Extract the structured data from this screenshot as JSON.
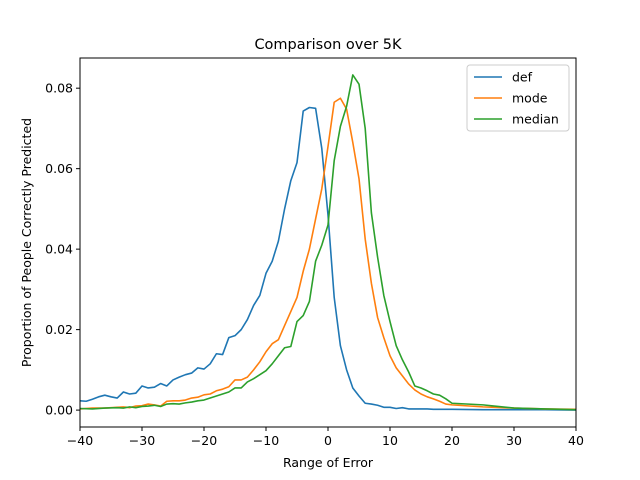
{
  "chart_data": {
    "type": "line",
    "title": "Comparison over 5K",
    "xlabel": "Range of Error",
    "ylabel": "Proportion of People Correctly Predicted",
    "xlim": [
      -40,
      40
    ],
    "ylim": [
      -0.0042,
      0.0875
    ],
    "xticks": [
      -40,
      -30,
      -20,
      -10,
      0,
      10,
      20,
      30,
      40
    ],
    "yticks": [
      0.0,
      0.02,
      0.04,
      0.06,
      0.08
    ],
    "ytick_labels": [
      "0.00",
      "0.02",
      "0.04",
      "0.06",
      "0.08"
    ],
    "grid": false,
    "legend": "upper-right",
    "series": [
      {
        "name": "def",
        "color": "#1f77b4",
        "x": [
          -40,
          -39,
          -38,
          -37,
          -36,
          -35,
          -34,
          -33,
          -32,
          -31,
          -30,
          -29,
          -28,
          -27,
          -26,
          -25,
          -24,
          -23,
          -22,
          -21,
          -20,
          -19,
          -18,
          -17,
          -16,
          -15,
          -14,
          -13,
          -12,
          -11,
          -10,
          -9,
          -8,
          -7,
          -6,
          -5,
          -4,
          -3,
          -2,
          -1,
          0,
          1,
          2,
          3,
          4,
          5,
          6,
          7,
          8,
          9,
          10,
          11,
          12,
          13,
          14,
          15,
          16,
          17,
          18,
          19,
          20,
          25,
          30,
          35,
          40
        ],
        "y": [
          0.0023,
          0.0022,
          0.0027,
          0.0033,
          0.0037,
          0.0033,
          0.003,
          0.0045,
          0.004,
          0.0042,
          0.006,
          0.0055,
          0.0057,
          0.0066,
          0.006,
          0.0075,
          0.0082,
          0.0088,
          0.0092,
          0.0105,
          0.0102,
          0.0115,
          0.014,
          0.0138,
          0.018,
          0.0185,
          0.02,
          0.0225,
          0.026,
          0.0285,
          0.034,
          0.037,
          0.042,
          0.05,
          0.057,
          0.0615,
          0.0743,
          0.0752,
          0.075,
          0.065,
          0.0485,
          0.028,
          0.016,
          0.01,
          0.0055,
          0.0035,
          0.0017,
          0.0015,
          0.0012,
          0.0007,
          0.0007,
          0.0004,
          0.0006,
          0.0003,
          0.0003,
          0.0003,
          0.0003,
          0.0002,
          0.0002,
          0.0002,
          0.0002,
          0.0001,
          0.0001,
          0.0001,
          0.0
        ]
      },
      {
        "name": "mode",
        "color": "#ff7f0e",
        "x": [
          -40,
          -38,
          -36,
          -34,
          -33,
          -32,
          -31,
          -30,
          -29,
          -28,
          -27,
          -26,
          -25,
          -24,
          -23,
          -22,
          -21,
          -20,
          -19,
          -18,
          -17,
          -16,
          -15,
          -14,
          -13,
          -12,
          -11,
          -10,
          -9,
          -8,
          -7,
          -6,
          -5,
          -4,
          -3,
          -2,
          -1,
          0,
          1,
          2,
          3,
          4,
          5,
          6,
          7,
          8,
          9,
          10,
          11,
          12,
          13,
          14,
          15,
          16,
          17,
          18,
          19,
          20,
          25,
          30,
          35,
          40
        ],
        "y": [
          0.0003,
          0.0005,
          0.0005,
          0.0007,
          0.0008,
          0.0006,
          0.001,
          0.0011,
          0.0015,
          0.0013,
          0.001,
          0.0022,
          0.0023,
          0.0023,
          0.0025,
          0.003,
          0.0032,
          0.0038,
          0.004,
          0.0048,
          0.0052,
          0.0058,
          0.0075,
          0.0075,
          0.0082,
          0.01,
          0.012,
          0.0145,
          0.0165,
          0.0175,
          0.021,
          0.0245,
          0.028,
          0.0345,
          0.04,
          0.0475,
          0.055,
          0.0655,
          0.0765,
          0.0775,
          0.0748,
          0.0665,
          0.0575,
          0.0425,
          0.0315,
          0.023,
          0.018,
          0.0135,
          0.0105,
          0.0085,
          0.0065,
          0.005,
          0.004,
          0.0033,
          0.0028,
          0.0022,
          0.0015,
          0.0013,
          0.0008,
          0.0005,
          0.0003,
          0.0002
        ]
      },
      {
        "name": "median",
        "color": "#2ca02c",
        "x": [
          -40,
          -38,
          -36,
          -34,
          -33,
          -32,
          -31,
          -30,
          -29,
          -28,
          -27,
          -26,
          -25,
          -24,
          -23,
          -22,
          -21,
          -20,
          -19,
          -18,
          -17,
          -16,
          -15,
          -14,
          -13,
          -12,
          -11,
          -10,
          -9,
          -8,
          -7,
          -6,
          -5,
          -4,
          -3,
          -2,
          -1,
          0,
          1,
          2,
          3,
          4,
          5,
          6,
          7,
          8,
          9,
          10,
          11,
          12,
          13,
          14,
          15,
          16,
          17,
          18,
          19,
          20,
          25,
          30,
          35,
          40
        ],
        "y": [
          0.0004,
          0.0003,
          0.0005,
          0.0006,
          0.0005,
          0.0008,
          0.0006,
          0.0009,
          0.001,
          0.0012,
          0.0009,
          0.0015,
          0.0016,
          0.0015,
          0.0018,
          0.002,
          0.0023,
          0.0025,
          0.003,
          0.0035,
          0.004,
          0.0045,
          0.0055,
          0.0055,
          0.007,
          0.0078,
          0.0088,
          0.0098,
          0.0115,
          0.0135,
          0.0155,
          0.0158,
          0.022,
          0.0235,
          0.027,
          0.037,
          0.041,
          0.046,
          0.062,
          0.0705,
          0.0755,
          0.0833,
          0.081,
          0.07,
          0.049,
          0.038,
          0.0285,
          0.022,
          0.016,
          0.0125,
          0.0095,
          0.006,
          0.0055,
          0.0048,
          0.004,
          0.0037,
          0.0028,
          0.0017,
          0.0013,
          0.0005,
          0.0003,
          0.0001
        ]
      }
    ]
  }
}
